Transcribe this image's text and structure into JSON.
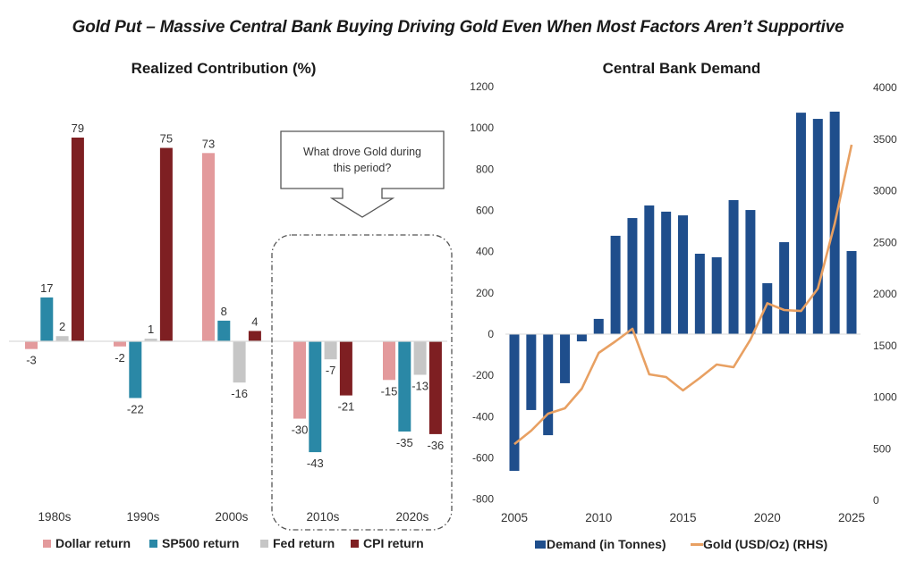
{
  "title": "Gold Put – Massive Central Bank Buying Driving Gold Even When Most Factors Aren’t Supportive",
  "chart_data": [
    {
      "type": "bar",
      "title": "Realized Contribution (%)",
      "xlabel": "",
      "ylabel": "",
      "ylim": [
        -45,
        80
      ],
      "grid": false,
      "legend": "bottom",
      "categories": [
        "1980s",
        "1990s",
        "2000s",
        "2010s",
        "2020s"
      ],
      "series": [
        {
          "name": "Dollar return",
          "color": "#e39a9c",
          "values": [
            -3,
            -2,
            73,
            -30,
            -15
          ]
        },
        {
          "name": "SP500 return",
          "color": "#2a88a6",
          "values": [
            17,
            -22,
            8,
            -43,
            -35
          ]
        },
        {
          "name": "Fed return",
          "color": "#c6c6c6",
          "values": [
            2,
            1,
            -16,
            -7,
            -13
          ]
        },
        {
          "name": "CPI return",
          "color": "#7e1f22",
          "values": [
            79,
            75,
            4,
            -21,
            -36
          ]
        }
      ],
      "annotation": {
        "text_lines": [
          "What drove Gold during",
          "this period?"
        ],
        "highlight_categories": [
          "2010s",
          "2020s"
        ]
      }
    },
    {
      "type": "bar+line",
      "title": "Central Bank Demand",
      "xlabel": "",
      "ylabel_left": "",
      "ylabel_right": "",
      "ylim_left": [
        -800,
        1200
      ],
      "ylim_right": [
        0,
        4000
      ],
      "yticks_left": [
        -800,
        -600,
        -400,
        -200,
        0,
        200,
        400,
        600,
        800,
        1000,
        1200
      ],
      "yticks_right": [
        0,
        500,
        1000,
        1500,
        2000,
        2500,
        3000,
        3500,
        4000
      ],
      "xticks": [
        2005,
        2010,
        2015,
        2020,
        2025
      ],
      "grid": false,
      "legend": "bottom",
      "x": [
        2005,
        2006,
        2007,
        2008,
        2009,
        2010,
        2011,
        2012,
        2013,
        2014,
        2015,
        2016,
        2017,
        2018,
        2019,
        2020,
        2021,
        2022,
        2023,
        2024,
        2025
      ],
      "series": [
        {
          "name": "Demand (in Tonnes)",
          "type": "bar",
          "axis": "left",
          "color": "#1f4e8c",
          "values": [
            -663,
            -368,
            -490,
            -238,
            -35,
            74,
            477,
            563,
            624,
            594,
            576,
            390,
            373,
            650,
            602,
            247,
            446,
            1074,
            1044,
            1079,
            403
          ]
        },
        {
          "name": "Gold (USD/Oz) (RHS)",
          "type": "line",
          "axis": "right",
          "color": "#e8a062",
          "values": [
            545,
            675,
            840,
            892,
            1082,
            1429,
            1541,
            1662,
            1221,
            1195,
            1065,
            1186,
            1316,
            1290,
            1558,
            1910,
            1844,
            1835,
            2052,
            2684,
            3446
          ]
        }
      ]
    }
  ]
}
